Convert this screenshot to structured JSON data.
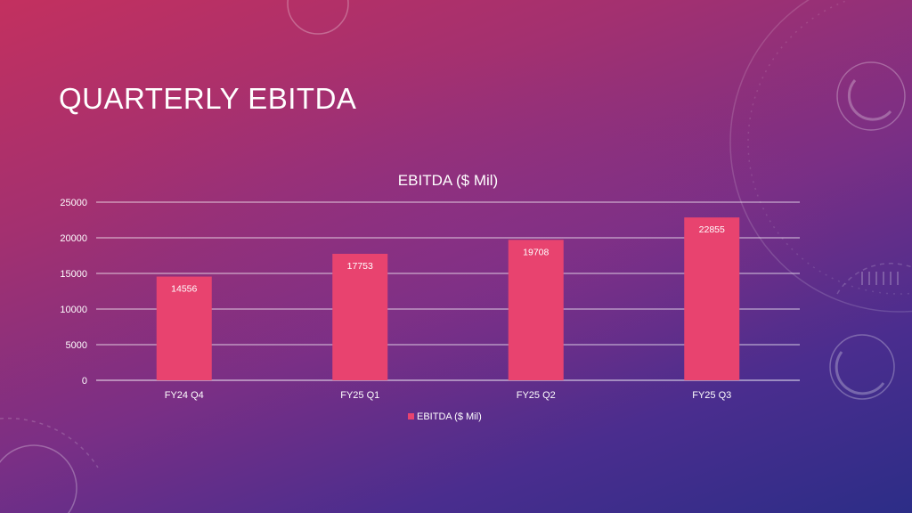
{
  "slide": {
    "title": "QUARTERLY EBITDA"
  },
  "colors": {
    "bar": "#e8436f",
    "gridline": "#ffffff",
    "text": "#ffffff"
  },
  "chart_data": {
    "type": "bar",
    "title": "EBITDA ($ Mil)",
    "categories": [
      "FY24 Q4",
      "FY25 Q1",
      "FY25 Q2",
      "FY25 Q3"
    ],
    "series": [
      {
        "name": "EBITDA ($ Mil)",
        "values": [
          14556,
          17753,
          19708,
          22855
        ]
      }
    ],
    "ylim": [
      0,
      25000
    ],
    "yticks": [
      0,
      5000,
      10000,
      15000,
      20000,
      25000
    ],
    "grid": true,
    "legend": "bottom",
    "data_labels": "inside-end"
  }
}
